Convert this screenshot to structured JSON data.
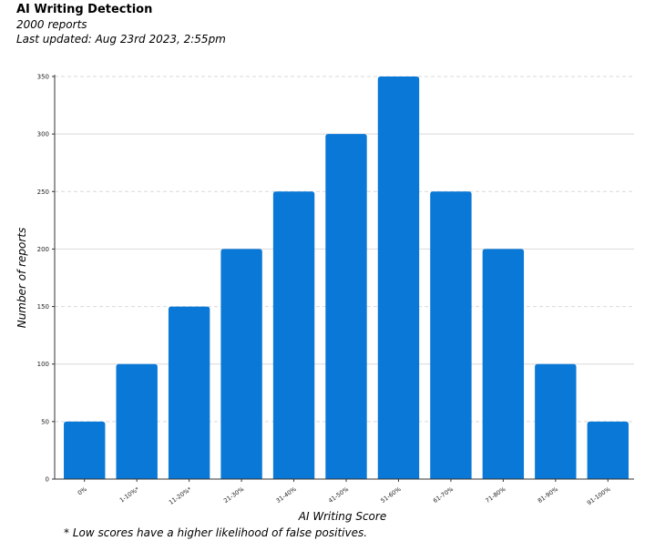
{
  "header": {
    "title": "AI Writing Detection",
    "subtitle": "2000 reports",
    "last_updated": "Last updated: Aug 23rd 2023, 2:55pm"
  },
  "footnote": "* Low scores have a higher likelihood of false positives.",
  "chart_data": {
    "type": "bar",
    "title": "",
    "xlabel": "AI Writing Score",
    "ylabel": "Number of reports",
    "categories": [
      "0%",
      "1-10%*",
      "11-20%*",
      "21-30%",
      "31-40%",
      "41-50%",
      "51-60%",
      "61-70%",
      "71-80%",
      "81-90%",
      "91-100%"
    ],
    "values": [
      50,
      100,
      150,
      200,
      250,
      300,
      350,
      250,
      200,
      100,
      50
    ],
    "ylim": [
      0,
      350
    ],
    "yticks": [
      0,
      50,
      100,
      150,
      200,
      250,
      300,
      350
    ],
    "grid": true,
    "bar_color": "#0a78d7",
    "grid_color": "#d9d9d9"
  }
}
